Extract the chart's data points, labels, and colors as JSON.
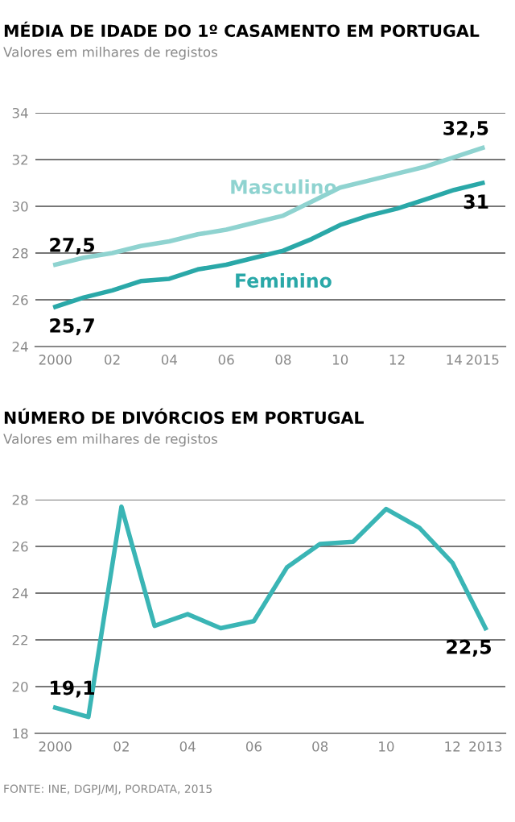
{
  "chart_data": [
    {
      "type": "line",
      "title": "MÉDIA DE IDADE DO 1º CASAMENTO EM PORTUGAL",
      "subtitle": "Valores em milhares de registos",
      "x": [
        2000,
        2001,
        2002,
        2003,
        2004,
        2005,
        2006,
        2007,
        2008,
        2009,
        2010,
        2011,
        2012,
        2013,
        2014,
        2015
      ],
      "series": [
        {
          "name": "Masculino",
          "color": "#8fd3d0",
          "values": [
            27.5,
            27.8,
            28.0,
            28.3,
            28.5,
            28.8,
            29.0,
            29.3,
            29.6,
            30.2,
            30.8,
            31.1,
            31.4,
            31.7,
            32.1,
            32.5
          ],
          "value_labels": [
            "27,5",
            null,
            null,
            null,
            null,
            null,
            null,
            null,
            null,
            null,
            null,
            null,
            null,
            null,
            null,
            "32,5"
          ]
        },
        {
          "name": "Feminino",
          "color": "#2aa8a8",
          "values": [
            25.7,
            26.1,
            26.4,
            26.8,
            26.9,
            27.3,
            27.5,
            27.8,
            28.1,
            28.6,
            29.2,
            29.6,
            29.9,
            30.3,
            30.7,
            31.0
          ],
          "value_labels": [
            "25,7",
            null,
            null,
            null,
            null,
            null,
            null,
            null,
            null,
            null,
            null,
            null,
            null,
            null,
            null,
            "31"
          ]
        }
      ],
      "xlim": [
        1999.3,
        2015.8
      ],
      "xticks": [
        2000,
        {
          "value": 2002,
          "label": "02"
        },
        {
          "value": 2004,
          "label": "04"
        },
        {
          "value": 2006,
          "label": "06"
        },
        {
          "value": 2008,
          "label": "08"
        },
        {
          "value": 2010,
          "label": "10"
        },
        {
          "value": 2012,
          "label": "12"
        },
        {
          "value": 2014,
          "label": "14"
        },
        2015
      ],
      "ylim": [
        24,
        34
      ],
      "yticks": [
        24,
        26,
        28,
        30,
        32,
        34
      ],
      "grid": "y",
      "legend": false,
      "marker": "none",
      "line_style": "solid"
    },
    {
      "type": "line",
      "title": "NÚMERO DE DIVÓRCIOS EM PORTUGAL",
      "subtitle": "Valores em milhares de registos",
      "x": [
        2000,
        2001,
        2002,
        2003,
        2004,
        2005,
        2006,
        2007,
        2008,
        2009,
        2010,
        2011,
        2012,
        2013
      ],
      "series": [
        {
          "color": "#3ab5b5",
          "values": [
            19.1,
            18.7,
            27.7,
            22.6,
            23.1,
            22.5,
            22.8,
            25.1,
            26.1,
            26.2,
            27.6,
            26.8,
            25.3,
            22.5
          ],
          "value_labels": [
            "19,1",
            null,
            null,
            null,
            null,
            null,
            null,
            null,
            null,
            null,
            null,
            null,
            null,
            "22,5"
          ]
        }
      ],
      "xlim": [
        1999.4,
        2013.6
      ],
      "xticks": [
        2000,
        {
          "value": 2002,
          "label": "02"
        },
        {
          "value": 2004,
          "label": "04"
        },
        {
          "value": 2006,
          "label": "06"
        },
        {
          "value": 2008,
          "label": "08"
        },
        {
          "value": 2010,
          "label": "10"
        },
        {
          "value": 2012,
          "label": "12"
        },
        2013
      ],
      "ylim": [
        18,
        28
      ],
      "yticks": [
        18,
        20,
        22,
        24,
        26,
        28
      ],
      "grid": "y",
      "legend": false,
      "marker": "none",
      "line_style": "solid",
      "annotations": [
        "FONTE: INE, DGPJ/MJ, PORDATA, 2015"
      ]
    }
  ]
}
